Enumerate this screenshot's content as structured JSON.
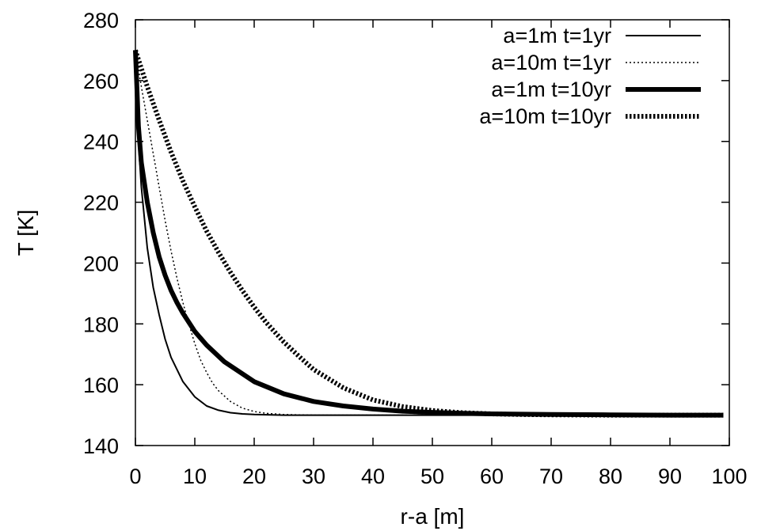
{
  "chart_data": {
    "type": "line",
    "title": "",
    "xlabel": "r-a [m]",
    "ylabel": "T [K]",
    "xlim": [
      0,
      100
    ],
    "ylim": [
      140,
      280
    ],
    "xticks": [
      0,
      10,
      20,
      30,
      40,
      50,
      60,
      70,
      80,
      90,
      100
    ],
    "yticks": [
      140,
      160,
      180,
      200,
      220,
      240,
      260,
      280
    ],
    "grid": false,
    "legend_position": "top-right",
    "series": [
      {
        "name": "a=1m t=1yr",
        "style": "solid-thin",
        "x": [
          0,
          0.5,
          1,
          2,
          3,
          4,
          5,
          6,
          7,
          8,
          10,
          12,
          14,
          16,
          18,
          20,
          25,
          30,
          40,
          60,
          80,
          99
        ],
        "y": [
          270,
          240,
          225,
          205,
          192,
          183,
          175,
          169,
          165,
          161,
          156,
          153,
          151.6,
          150.8,
          150.4,
          150.2,
          150,
          150,
          150,
          150,
          150,
          150
        ]
      },
      {
        "name": "a=10m t=1yr",
        "style": "dotted-thin",
        "x": [
          0,
          1,
          2,
          3,
          4,
          5,
          6,
          7,
          8,
          9,
          10,
          11,
          12,
          13,
          14,
          16,
          18,
          20,
          22,
          25,
          30,
          40,
          60,
          80,
          99
        ],
        "y": [
          270,
          258,
          247,
          236,
          225,
          214,
          204,
          195,
          187,
          180,
          173.5,
          168,
          164,
          160.5,
          158,
          154.5,
          152.3,
          151.2,
          150.6,
          150.2,
          150,
          150,
          150,
          150,
          150
        ]
      },
      {
        "name": "a=1m t=10yr",
        "style": "solid-thick",
        "x": [
          0,
          0.5,
          1,
          2,
          3,
          4,
          5,
          6,
          7,
          8,
          10,
          12,
          15,
          20,
          25,
          30,
          35,
          40,
          45,
          50,
          55,
          60,
          70,
          80,
          90,
          99
        ],
        "y": [
          270,
          245,
          233,
          220,
          210,
          202,
          196,
          191,
          187,
          183.5,
          177.5,
          173,
          167.5,
          161,
          157,
          154.5,
          153,
          152,
          151.3,
          150.9,
          150.6,
          150.4,
          150.2,
          150.1,
          150,
          150
        ]
      },
      {
        "name": "a=10m t=10yr",
        "style": "dotted-thick",
        "x": [
          0,
          2,
          4,
          6,
          8,
          10,
          12,
          14,
          16,
          18,
          20,
          22,
          25,
          28,
          30,
          35,
          40,
          45,
          50,
          55,
          60,
          65,
          70,
          80,
          90,
          99
        ],
        "y": [
          270,
          258,
          247,
          236.5,
          227,
          218.5,
          210.5,
          203.5,
          197,
          191,
          185.5,
          180.5,
          174,
          168.5,
          165,
          159,
          155,
          152.8,
          151.5,
          150.8,
          150.4,
          150.2,
          150.1,
          150,
          150,
          150
        ]
      }
    ]
  }
}
